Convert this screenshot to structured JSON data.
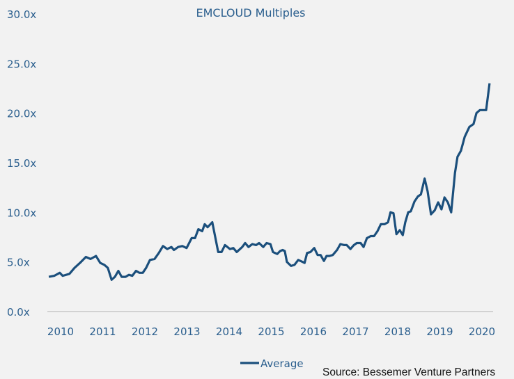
{
  "chart_data": {
    "type": "line",
    "title": "EMCLOUD Multiples",
    "xlabel": "",
    "ylabel": "",
    "ylim": [
      0,
      30
    ],
    "xlim": [
      2009.7,
      2020.2
    ],
    "y_ticks": [
      "0.0x",
      "5.0x",
      "10.0x",
      "15.0x",
      "20.0x",
      "25.0x",
      "30.0x"
    ],
    "y_tick_values": [
      0,
      5,
      10,
      15,
      20,
      25,
      30
    ],
    "x_ticks": [
      "2010",
      "2011",
      "2012",
      "2013",
      "2014",
      "2015",
      "2016",
      "2017",
      "2018",
      "2019",
      "2020"
    ],
    "x_tick_values": [
      2010,
      2011,
      2012,
      2013,
      2014,
      2015,
      2016,
      2017,
      2018,
      2019,
      2020
    ],
    "grid": false,
    "legend_position": "bottom",
    "series": [
      {
        "name": "Average",
        "color": "#1b4f7c",
        "x": [
          2009.72,
          2009.85,
          2009.98,
          2010.05,
          2010.21,
          2010.33,
          2010.46,
          2010.6,
          2010.71,
          2010.84,
          2010.94,
          2011.04,
          2011.12,
          2011.21,
          2011.29,
          2011.37,
          2011.45,
          2011.54,
          2011.62,
          2011.7,
          2011.79,
          2011.87,
          2011.95,
          2012.03,
          2012.12,
          2012.23,
          2012.33,
          2012.43,
          2012.53,
          2012.63,
          2012.69,
          2012.79,
          2012.89,
          2012.99,
          2013.11,
          2013.19,
          2013.27,
          2013.36,
          2013.42,
          2013.49,
          2013.6,
          2013.74,
          2013.82,
          2013.9,
          2014.02,
          2014.1,
          2014.18,
          2014.31,
          2014.38,
          2014.46,
          2014.55,
          2014.64,
          2014.71,
          2014.81,
          2014.89,
          2014.98,
          2015.04,
          2015.14,
          2015.21,
          2015.27,
          2015.32,
          2015.37,
          2015.47,
          2015.55,
          2015.64,
          2015.74,
          2015.79,
          2015.85,
          2015.93,
          2016.02,
          2016.1,
          2016.17,
          2016.25,
          2016.31,
          2016.38,
          2016.46,
          2016.56,
          2016.64,
          2016.73,
          2016.79,
          2016.88,
          2016.96,
          2017.03,
          2017.12,
          2017.19,
          2017.27,
          2017.36,
          2017.44,
          2017.52,
          2017.6,
          2017.69,
          2017.77,
          2017.83,
          2017.9,
          2017.97,
          2018.05,
          2018.12,
          2018.18,
          2018.25,
          2018.31,
          2018.4,
          2018.48,
          2018.55,
          2018.64,
          2018.71,
          2018.79,
          2018.88,
          2018.96,
          2019.04,
          2019.11,
          2019.19,
          2019.27,
          2019.36,
          2019.42,
          2019.5,
          2019.59,
          2019.7,
          2019.8,
          2019.87,
          2019.95,
          2020.1,
          2020.18
        ],
        "values": [
          3.5,
          3.6,
          3.9,
          3.6,
          3.8,
          4.4,
          4.9,
          5.5,
          5.3,
          5.6,
          4.9,
          4.7,
          4.4,
          3.2,
          3.5,
          4.1,
          3.5,
          3.5,
          3.7,
          3.6,
          4.1,
          3.9,
          3.9,
          4.4,
          5.2,
          5.3,
          5.9,
          6.6,
          6.3,
          6.5,
          6.2,
          6.5,
          6.6,
          6.4,
          7.4,
          7.4,
          8.3,
          8.1,
          8.8,
          8.5,
          9.0,
          6.0,
          6.0,
          6.7,
          6.3,
          6.4,
          6.0,
          6.5,
          6.9,
          6.5,
          6.8,
          6.7,
          6.9,
          6.5,
          6.9,
          6.8,
          6.0,
          5.8,
          6.1,
          6.2,
          6.1,
          5.0,
          4.6,
          4.7,
          5.2,
          5.0,
          4.9,
          5.9,
          6.0,
          6.4,
          5.7,
          5.7,
          5.1,
          5.6,
          5.6,
          5.7,
          6.2,
          6.8,
          6.7,
          6.7,
          6.3,
          6.7,
          6.9,
          6.9,
          6.5,
          7.4,
          7.6,
          7.6,
          8.1,
          8.8,
          8.8,
          9.0,
          10.0,
          9.9,
          7.8,
          8.2,
          7.7,
          9.0,
          10.0,
          10.1,
          11.1,
          11.6,
          11.8,
          13.4,
          12.1,
          9.8,
          10.2,
          11.0,
          10.3,
          11.5,
          11.0,
          10.0,
          14.0,
          15.6,
          16.2,
          17.6,
          18.6,
          18.9,
          20.0,
          20.3,
          20.3,
          23.0
        ]
      }
    ]
  },
  "source": "Source: Bessemer Venture Partners"
}
